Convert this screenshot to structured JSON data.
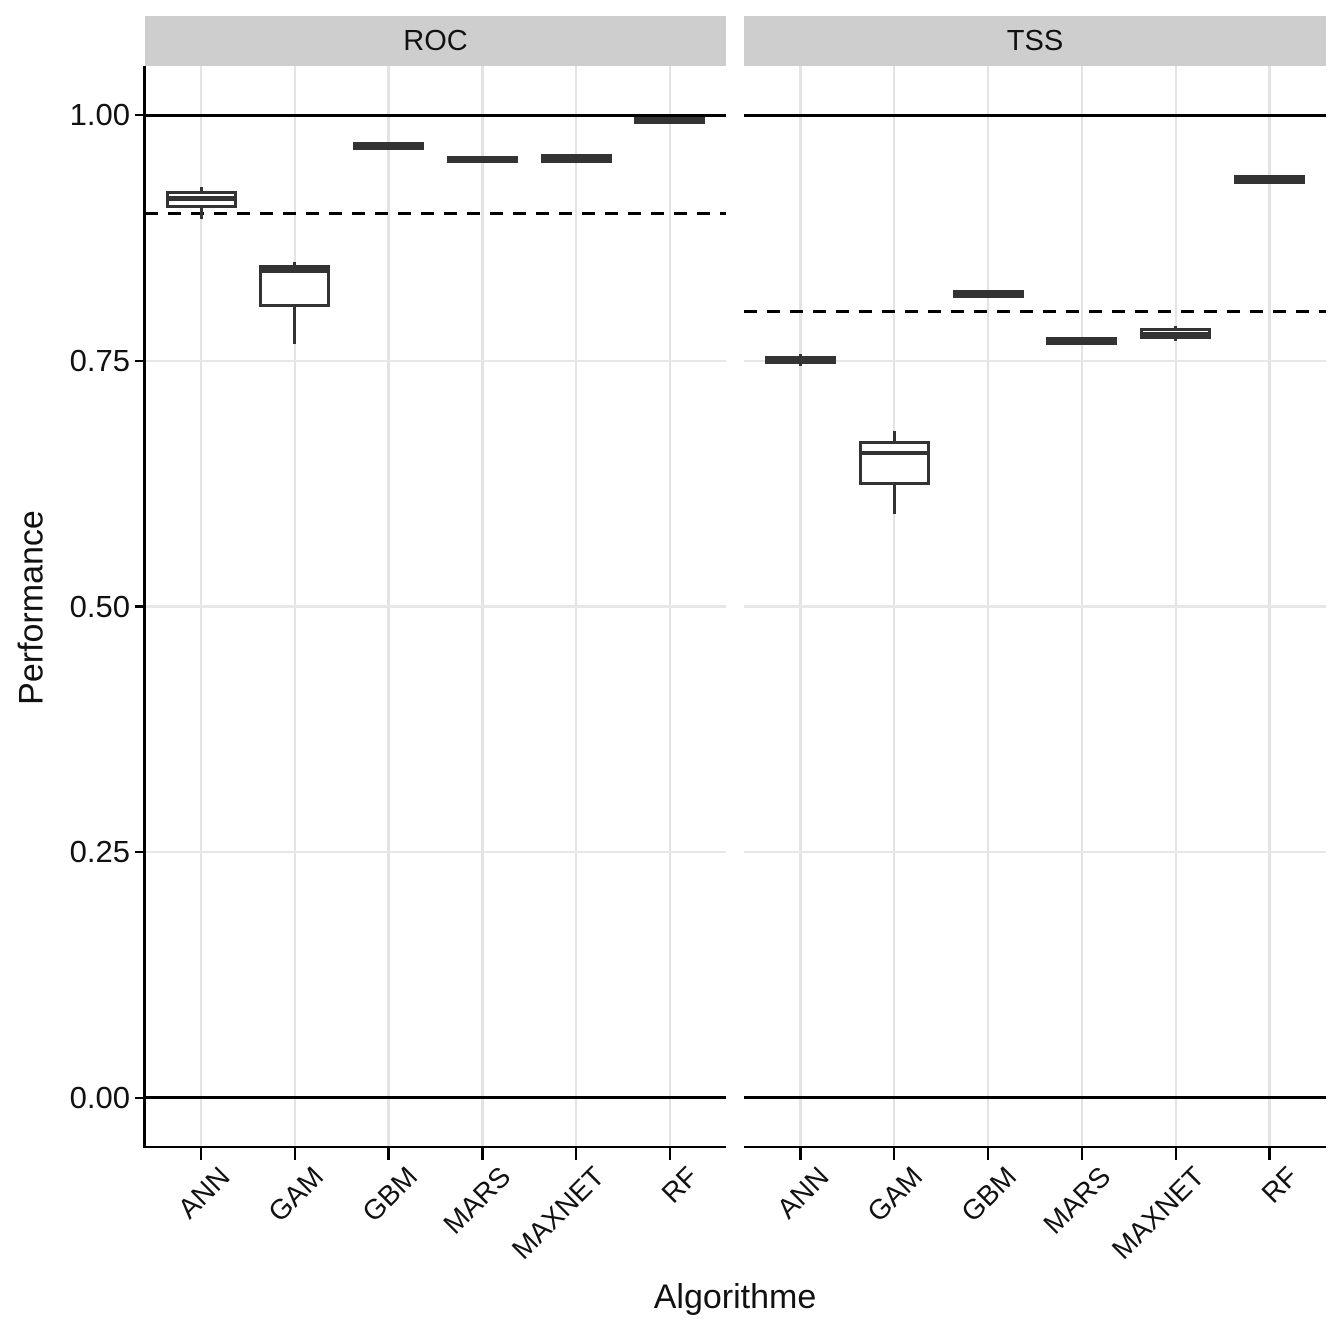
{
  "figure": {
    "y_axis_title": "Performance",
    "x_axis_title": "Algorithme"
  },
  "chart_data": {
    "type": "boxplot",
    "facet_variable_values": [
      "ROC",
      "TSS"
    ],
    "categories": [
      "ANN",
      "GAM",
      "GBM",
      "MARS",
      "MAXNET",
      "RF"
    ],
    "ylabel": "Performance",
    "xlabel": "Algorithme",
    "ylim": [
      -0.05,
      1.05
    ],
    "y_ticks": [
      {
        "label": "1.00",
        "value": 1.0
      },
      {
        "label": "0.75",
        "value": 0.75
      },
      {
        "label": "0.50",
        "value": 0.5
      },
      {
        "label": "0.25",
        "value": 0.25
      },
      {
        "label": "0.00",
        "value": 0.0
      }
    ],
    "grid": "major-only",
    "legend_position": "none",
    "facets": [
      {
        "label": "ROC",
        "reference_lines_solid": [
          1.0,
          0.0
        ],
        "reference_line_dashed": 0.9,
        "boxes": [
          {
            "category": "ANN",
            "min": 0.894,
            "q1": 0.906,
            "median": 0.915,
            "q3": 0.923,
            "max": 0.927
          },
          {
            "category": "GAM",
            "min": 0.767,
            "q1": 0.805,
            "median": 0.842,
            "q3": 0.847,
            "max": 0.851
          },
          {
            "category": "GBM",
            "min": 0.965,
            "q1": 0.965,
            "median": 0.969,
            "q3": 0.973,
            "max": 0.973
          },
          {
            "category": "MARS",
            "min": 0.951,
            "q1": 0.951,
            "median": 0.955,
            "q3": 0.958,
            "max": 0.958
          },
          {
            "category": "MAXNET",
            "min": 0.951,
            "q1": 0.951,
            "median": 0.955,
            "q3": 0.96,
            "max": 0.96
          },
          {
            "category": "RF",
            "min": 0.992,
            "q1": 0.992,
            "median": 0.995,
            "q3": 0.998,
            "max": 0.998
          }
        ]
      },
      {
        "label": "TSS",
        "reference_lines_solid": [
          1.0,
          0.0
        ],
        "reference_line_dashed": 0.8,
        "boxes": [
          {
            "category": "ANN",
            "min": 0.745,
            "q1": 0.747,
            "median": 0.751,
            "q3": 0.755,
            "max": 0.757
          },
          {
            "category": "GAM",
            "min": 0.594,
            "q1": 0.624,
            "median": 0.656,
            "q3": 0.668,
            "max": 0.679
          },
          {
            "category": "GBM",
            "min": 0.814,
            "q1": 0.814,
            "median": 0.818,
            "q3": 0.822,
            "max": 0.822
          },
          {
            "category": "MARS",
            "min": 0.766,
            "q1": 0.766,
            "median": 0.77,
            "q3": 0.774,
            "max": 0.774
          },
          {
            "category": "MAXNET",
            "min": 0.77,
            "q1": 0.772,
            "median": 0.777,
            "q3": 0.783,
            "max": 0.785
          },
          {
            "category": "RF",
            "min": 0.93,
            "q1": 0.93,
            "median": 0.935,
            "q3": 0.939,
            "max": 0.939
          }
        ]
      }
    ],
    "colors": {
      "box_border": "#333333",
      "strip_background": "#cecece",
      "gridline": "#e3e3e3",
      "reference_line": "#000000",
      "background": "#ffffff"
    }
  }
}
